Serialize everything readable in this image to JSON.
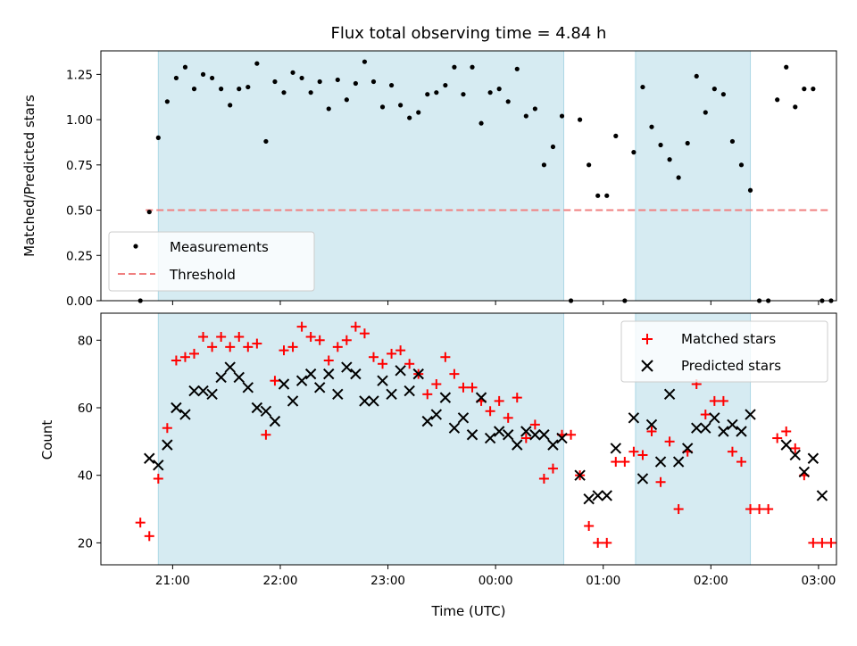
{
  "chart_data": [
    {
      "type": "scatter",
      "title": "Flux total observing time = 4.84 h",
      "ylabel": "Matched/Predicted stars",
      "xlabel": "",
      "ylim": [
        0,
        1.38
      ],
      "yticks": [
        "0.00",
        "0.25",
        "0.50",
        "0.75",
        "1.00",
        "1.25"
      ],
      "ytick_values": [
        0,
        0.25,
        0.5,
        0.75,
        1.0,
        1.25
      ],
      "legend_position": "lower-left",
      "shaded_intervals": [
        [
          "20:52",
          "00:38"
        ],
        [
          "01:18",
          "02:22"
        ]
      ],
      "threshold": {
        "name": "Threshold",
        "y": 0.5,
        "x_start": "20:45",
        "x_end": "03:06",
        "color": "#f08080"
      },
      "series": [
        {
          "name": "Measurements",
          "color": "#000000",
          "x": [
            "20:42",
            "20:47",
            "20:52",
            "20:57",
            "21:02",
            "21:07",
            "21:12",
            "21:17",
            "21:22",
            "21:27",
            "21:32",
            "21:37",
            "21:42",
            "21:47",
            "21:52",
            "21:57",
            "22:02",
            "22:07",
            "22:12",
            "22:17",
            "22:22",
            "22:27",
            "22:32",
            "22:37",
            "22:42",
            "22:47",
            "22:52",
            "22:57",
            "23:02",
            "23:07",
            "23:12",
            "23:17",
            "23:22",
            "23:27",
            "23:32",
            "23:37",
            "23:42",
            "23:47",
            "23:52",
            "23:57",
            "00:02",
            "00:07",
            "00:12",
            "00:17",
            "00:22",
            "00:27",
            "00:32",
            "00:37",
            "00:42",
            "00:47",
            "00:52",
            "00:57",
            "01:02",
            "01:07",
            "01:12",
            "01:17",
            "01:22",
            "01:27",
            "01:32",
            "01:37",
            "01:42",
            "01:47",
            "01:52",
            "01:57",
            "02:02",
            "02:07",
            "02:12",
            "02:17",
            "02:22",
            "02:27",
            "02:32",
            "02:37",
            "02:42",
            "02:47",
            "02:52",
            "02:57",
            "03:02",
            "03:07"
          ],
          "y": [
            0.0,
            0.49,
            0.9,
            1.1,
            1.23,
            1.29,
            1.17,
            1.25,
            1.23,
            1.17,
            1.08,
            1.17,
            1.18,
            1.31,
            0.88,
            1.21,
            1.15,
            1.26,
            1.23,
            1.15,
            1.21,
            1.06,
            1.22,
            1.11,
            1.2,
            1.32,
            1.21,
            1.07,
            1.19,
            1.08,
            1.01,
            1.04,
            1.14,
            1.15,
            1.19,
            1.29,
            1.14,
            1.29,
            0.98,
            1.15,
            1.17,
            1.1,
            1.28,
            1.02,
            1.06,
            0.75,
            0.85,
            1.02,
            0.0,
            1.0,
            0.75,
            0.58,
            0.58,
            0.91,
            0.0,
            0.82,
            1.18,
            0.96,
            0.86,
            0.78,
            0.68,
            0.87,
            1.24,
            1.04,
            1.17,
            1.14,
            0.88,
            0.75,
            0.61,
            0.0,
            0.0,
            1.11,
            1.29,
            1.07,
            1.17,
            1.17,
            0.0,
            0.0
          ]
        }
      ]
    },
    {
      "type": "scatter",
      "title": "",
      "ylabel": "Count",
      "xlabel": "Time (UTC)",
      "ylim": [
        13.5,
        88
      ],
      "yticks": [
        "20",
        "40",
        "60",
        "80"
      ],
      "ytick_values": [
        20,
        40,
        60,
        80
      ],
      "xticks": [
        "21:00",
        "22:00",
        "23:00",
        "00:00",
        "01:00",
        "02:00",
        "03:00"
      ],
      "legend_position": "upper-right",
      "shaded_intervals": [
        [
          "20:52",
          "00:38"
        ],
        [
          "01:18",
          "02:22"
        ]
      ],
      "series": [
        {
          "name": "Matched stars",
          "color": "#ff0000",
          "marker": "+",
          "x": [
            "20:42",
            "20:47",
            "20:52",
            "20:57",
            "21:02",
            "21:07",
            "21:12",
            "21:17",
            "21:22",
            "21:27",
            "21:32",
            "21:37",
            "21:42",
            "21:47",
            "21:52",
            "21:57",
            "22:02",
            "22:07",
            "22:12",
            "22:17",
            "22:22",
            "22:27",
            "22:32",
            "22:37",
            "22:42",
            "22:47",
            "22:52",
            "22:57",
            "23:02",
            "23:07",
            "23:12",
            "23:17",
            "23:22",
            "23:27",
            "23:32",
            "23:37",
            "23:42",
            "23:47",
            "23:52",
            "23:57",
            "00:02",
            "00:07",
            "00:12",
            "00:17",
            "00:22",
            "00:27",
            "00:32",
            "00:37",
            "00:42",
            "00:47",
            "00:52",
            "00:57",
            "01:02",
            "01:07",
            "01:12",
            "01:17",
            "01:22",
            "01:27",
            "01:32",
            "01:37",
            "01:42",
            "01:47",
            "01:52",
            "01:57",
            "02:02",
            "02:07",
            "02:12",
            "02:17",
            "02:22",
            "02:27",
            "02:32",
            "02:37",
            "02:42",
            "02:47",
            "02:52",
            "02:57",
            "03:02",
            "03:07"
          ],
          "y": [
            26,
            22,
            39,
            54,
            74,
            75,
            76,
            81,
            78,
            81,
            78,
            81,
            78,
            79,
            52,
            68,
            77,
            78,
            84,
            81,
            80,
            74,
            78,
            80,
            84,
            82,
            75,
            73,
            76,
            77,
            73,
            70,
            64,
            67,
            75,
            70,
            66,
            66,
            62,
            59,
            62,
            57,
            63,
            51,
            55,
            39,
            42,
            52,
            52,
            40,
            25,
            20,
            20,
            44,
            44,
            47,
            46,
            53,
            38,
            50,
            30,
            47,
            67,
            58,
            62,
            62,
            47,
            44,
            30,
            30,
            30,
            51,
            53,
            48,
            40,
            20,
            20,
            20
          ]
        },
        {
          "name": "Predicted stars",
          "color": "#000000",
          "marker": "x",
          "x": [
            "20:47",
            "20:52",
            "20:57",
            "21:02",
            "21:07",
            "21:12",
            "21:17",
            "21:22",
            "21:27",
            "21:32",
            "21:37",
            "21:42",
            "21:47",
            "21:52",
            "21:57",
            "22:02",
            "22:07",
            "22:12",
            "22:17",
            "22:22",
            "22:27",
            "22:32",
            "22:37",
            "22:42",
            "22:47",
            "22:52",
            "22:57",
            "23:02",
            "23:07",
            "23:12",
            "23:17",
            "23:22",
            "23:27",
            "23:32",
            "23:37",
            "23:42",
            "23:47",
            "23:52",
            "23:57",
            "00:02",
            "00:07",
            "00:12",
            "00:17",
            "00:22",
            "00:27",
            "00:32",
            "00:37",
            "00:47",
            "00:52",
            "00:57",
            "01:02",
            "01:07",
            "01:17",
            "01:22",
            "01:27",
            "01:32",
            "01:37",
            "01:42",
            "01:47",
            "01:52",
            "01:57",
            "02:02",
            "02:07",
            "02:12",
            "02:17",
            "02:22",
            "02:42",
            "02:47",
            "02:52",
            "02:57",
            "03:02"
          ],
          "y": [
            45,
            43,
            49,
            60,
            58,
            65,
            65,
            64,
            69,
            72,
            69,
            66,
            60,
            59,
            56,
            67,
            62,
            68,
            70,
            66,
            70,
            64,
            72,
            70,
            62,
            62,
            68,
            64,
            71,
            65,
            70,
            56,
            58,
            63,
            54,
            57,
            52,
            63,
            51,
            53,
            52,
            49,
            53,
            52,
            52,
            49,
            51,
            40,
            33,
            34,
            34,
            48,
            57,
            39,
            55,
            44,
            64,
            44,
            48,
            54,
            54,
            57,
            53,
            55,
            53,
            58,
            49,
            46,
            41,
            45,
            34
          ]
        }
      ]
    }
  ]
}
